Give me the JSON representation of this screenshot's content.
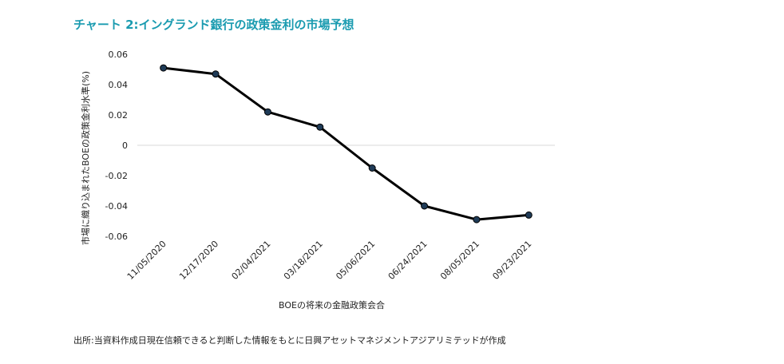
{
  "title": "チャート 2:イングランド銀行の政策金利の市場予想",
  "source": "出所:当資料作成日現在信頼できると判断した情報をもとに日興アセットマネジメントアジアリミテッドが作成",
  "chart_data": {
    "type": "line",
    "categories": [
      "11/05/2020",
      "12/17/2020",
      "02/04/2021",
      "03/18/2021",
      "05/06/2021",
      "06/24/2021",
      "08/05/2021",
      "09/23/2021"
    ],
    "series": [
      {
        "values": [
          0.051,
          0.047,
          0.022,
          0.012,
          -0.015,
          -0.04,
          -0.049,
          -0.046
        ]
      }
    ],
    "xlabel": "BOEの将来の金融政策会合",
    "ylabel": "市場に織り込まれたBOEの政策金利水準(%)",
    "yticks": [
      "0.06",
      "0.04",
      "0.02",
      "0",
      "-0.02",
      "-0.04",
      "-0.06"
    ],
    "ylim": [
      -0.06,
      0.06
    ],
    "grid": false,
    "colors": {
      "line": "#000000",
      "marker": "#1f3b57",
      "zero_line": "#d9d9d9"
    }
  }
}
